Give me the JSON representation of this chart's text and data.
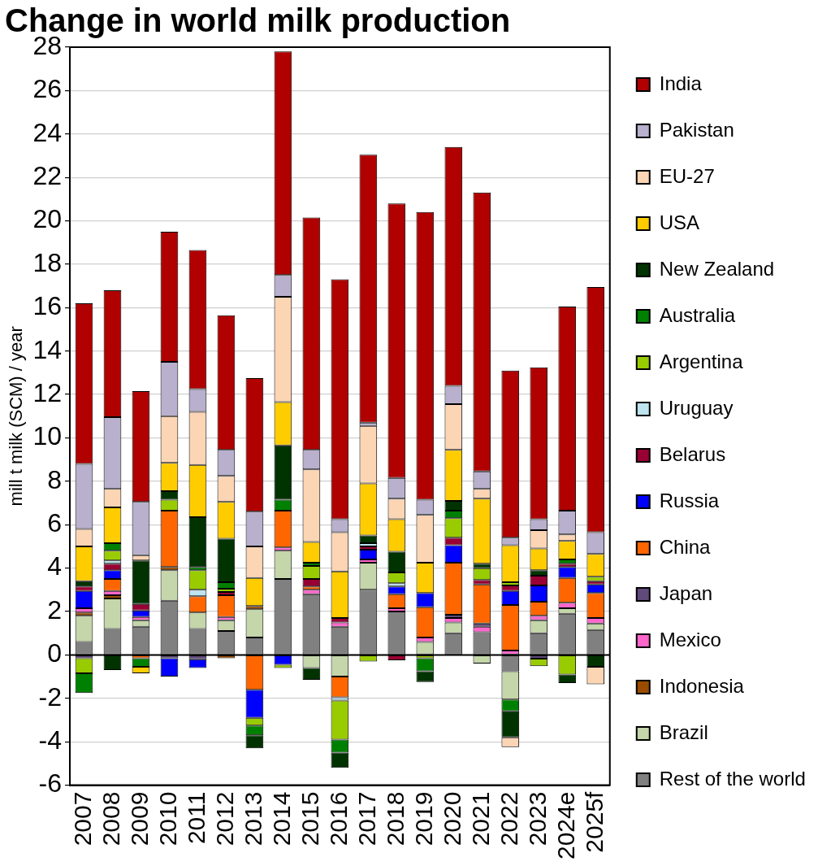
{
  "chart_data": {
    "type": "bar",
    "title": "Change in world milk production",
    "ylabel": "mill t milk (SCM) / year",
    "categories": [
      "2007",
      "2008",
      "2009",
      "2010",
      "2011",
      "2012",
      "2013",
      "2014",
      "2015",
      "2016",
      "2017",
      "2018",
      "2019",
      "2020",
      "2021",
      "2022",
      "2023",
      "2024e",
      "2025f"
    ],
    "stacked": true,
    "ylim": [
      -6,
      28
    ],
    "yticks": [
      -6,
      -4,
      -2,
      0,
      2,
      4,
      6,
      8,
      10,
      12,
      14,
      16,
      18,
      20,
      22,
      24,
      26,
      28
    ],
    "grid": "y",
    "legend": "right",
    "series": [
      {
        "name": "Rest of the world",
        "color": "#808080",
        "values": [
          0.6,
          1.2,
          1.3,
          2.5,
          1.2,
          1.1,
          0.8,
          3.5,
          2.8,
          1.3,
          3.0,
          2.0,
          null,
          1.0,
          1.05,
          -0.75,
          1.0,
          1.9,
          1.15
        ]
      },
      {
        "name": "Brazil",
        "color": "#c4d6aa",
        "values": [
          1.2,
          1.4,
          0.3,
          1.4,
          0.75,
          0.5,
          1.3,
          1.3,
          -0.6,
          -1.0,
          1.25,
          null,
          0.6,
          0.5,
          -0.4,
          -1.3,
          0.6,
          0.25,
          0.3
        ]
      },
      {
        "name": "Indonesia",
        "color": "#994c00",
        "values": [
          0.15,
          0.15,
          null,
          0.15,
          null,
          -0.15,
          0.15,
          null,
          null,
          null,
          null,
          null,
          null,
          null,
          null,
          null,
          null,
          null,
          null
        ]
      },
      {
        "name": "Mexico",
        "color": "#ff66cc",
        "values": [
          0.2,
          0.2,
          0.15,
          null,
          null,
          0.15,
          null,
          0.15,
          0.2,
          0.2,
          0.15,
          0.15,
          0.2,
          0.2,
          0.25,
          0.2,
          0.2,
          0.25,
          0.25
        ]
      },
      {
        "name": "Japan",
        "color": "#604a7b",
        "values": [
          -0.15,
          null,
          null,
          -0.15,
          -0.2,
          null,
          null,
          null,
          null,
          null,
          null,
          null,
          null,
          0.15,
          0.15,
          null,
          -0.17,
          null,
          null
        ]
      },
      {
        "name": "China",
        "color": "#ff6600",
        "values": [
          null,
          0.55,
          -0.15,
          2.6,
          0.75,
          1.0,
          -1.6,
          1.7,
          0.15,
          -0.95,
          null,
          0.65,
          1.4,
          2.4,
          1.8,
          2.1,
          0.65,
          1.15,
          1.15
        ]
      },
      {
        "name": "Russia",
        "color": "#0000ff",
        "values": [
          0.8,
          0.4,
          0.3,
          -0.85,
          -0.4,
          null,
          -1.3,
          -0.45,
          null,
          null,
          0.45,
          0.35,
          0.65,
          0.8,
          null,
          0.65,
          0.75,
          0.5,
          0.4
        ]
      },
      {
        "name": "Belarus",
        "color": "#990033",
        "values": [
          0.2,
          0.3,
          0.3,
          null,
          null,
          0.15,
          null,
          null,
          0.35,
          0.2,
          0.15,
          -0.25,
          null,
          0.35,
          0.2,
          0.25,
          0.45,
          0.15,
          0.15
        ]
      },
      {
        "name": "Uruguay",
        "color": "#bde4ef",
        "values": [
          null,
          0.15,
          null,
          null,
          0.3,
          null,
          null,
          null,
          null,
          -0.15,
          0.15,
          0.15,
          null,
          null,
          null,
          null,
          null,
          null,
          null
        ]
      },
      {
        "name": "Argentina",
        "color": "#99cc00",
        "values": [
          -0.7,
          0.45,
          null,
          0.5,
          0.9,
          0.15,
          -0.35,
          -0.15,
          0.6,
          -1.8,
          -0.3,
          0.5,
          -0.15,
          0.9,
          0.55,
          0.15,
          -0.35,
          -0.9,
          0.2
        ]
      },
      {
        "name": "Australia",
        "color": "#008000",
        "values": [
          -0.9,
          0.35,
          -0.4,
          null,
          0.15,
          0.3,
          -0.45,
          0.5,
          0.15,
          -0.6,
          null,
          null,
          -0.6,
          0.35,
          null,
          -0.55,
          null,
          0.2,
          null
        ]
      },
      {
        "name": "New Zealand",
        "color": "#003300",
        "values": [
          0.25,
          -0.7,
          2.0,
          0.4,
          2.3,
          2.0,
          -0.6,
          2.5,
          -0.55,
          -0.7,
          0.35,
          0.95,
          -0.5,
          0.45,
          0.2,
          -1.2,
          0.25,
          -0.4,
          -0.55
        ]
      },
      {
        "name": "USA",
        "color": "#ffcc00",
        "values": [
          1.6,
          1.65,
          -0.3,
          1.3,
          2.4,
          1.7,
          1.3,
          2.0,
          0.95,
          2.15,
          2.4,
          1.5,
          1.4,
          2.35,
          3.0,
          1.7,
          1.0,
          0.85,
          1.05
        ]
      },
      {
        "name": "EU-27",
        "color": "#fcd5b4",
        "values": [
          0.8,
          0.85,
          0.25,
          2.15,
          2.45,
          1.2,
          1.45,
          4.85,
          3.35,
          1.8,
          2.65,
          0.95,
          2.2,
          2.1,
          0.45,
          -0.45,
          0.85,
          0.3,
          -0.8
        ]
      },
      {
        "name": "Pakistan",
        "color": "#b8b0cc",
        "values": [
          3.0,
          3.3,
          2.45,
          2.5,
          1.05,
          1.2,
          1.6,
          1.0,
          0.9,
          0.6,
          0.15,
          0.95,
          0.7,
          0.85,
          0.8,
          0.35,
          0.5,
          1.1,
          1.0
        ]
      },
      {
        "name": "India",
        "color": "#b00000",
        "values": [
          7.4,
          5.85,
          5.1,
          6.0,
          6.4,
          6.2,
          6.15,
          10.3,
          10.7,
          11.05,
          12.35,
          12.65,
          13.25,
          11.0,
          12.85,
          7.7,
          7.0,
          9.4,
          11.3
        ]
      }
    ]
  }
}
